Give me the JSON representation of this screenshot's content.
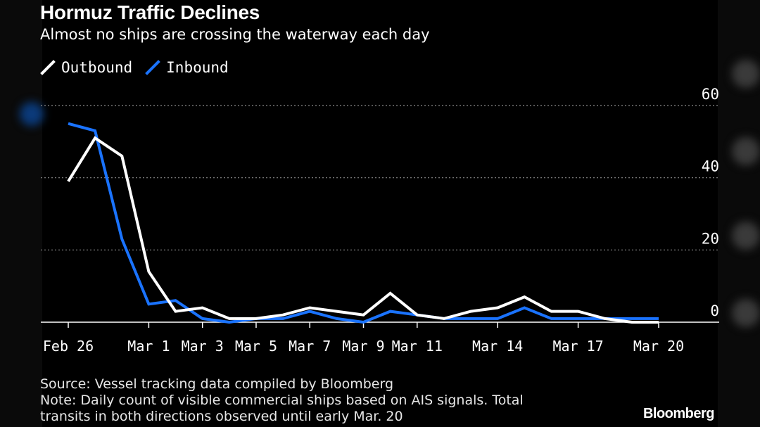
{
  "header": {
    "title": "Hormuz Traffic Declines",
    "subtitle": "Almost no ships are crossing the waterway each day"
  },
  "legend": [
    {
      "label": "Outbound",
      "color": "#ffffff"
    },
    {
      "label": "Inbound",
      "color": "#1a73ff"
    }
  ],
  "footer": {
    "source": "Source: Vessel tracking data compiled by Bloomberg",
    "note_line1": "Note: Daily count of visible commercial ships based on AIS signals. Total",
    "note_line2": "transits in both directions observed until early Mar. 20",
    "logo": "Bloomberg"
  },
  "chart_data": {
    "type": "line",
    "title": "Hormuz Traffic Declines",
    "subtitle": "Almost no ships are crossing the waterway each day",
    "x": [
      "Feb 26",
      "Feb 27",
      "Feb 28",
      "Mar 1",
      "Mar 2",
      "Mar 3",
      "Mar 4",
      "Mar 5",
      "Mar 6",
      "Mar 7",
      "Mar 8",
      "Mar 9",
      "Mar 10",
      "Mar 11",
      "Mar 12",
      "Mar 13",
      "Mar 14",
      "Mar 15",
      "Mar 16",
      "Mar 17",
      "Mar 18",
      "Mar 19",
      "Mar 20"
    ],
    "x_tick_labels": [
      "Feb 26",
      "Mar 1",
      "Mar 3",
      "Mar 5",
      "Mar 7",
      "Mar 9",
      "Mar 11",
      "Mar 14",
      "Mar 17",
      "Mar 20"
    ],
    "series": [
      {
        "name": "Outbound",
        "color": "#ffffff",
        "values": [
          39,
          51,
          46,
          14,
          3,
          4,
          1,
          1,
          2,
          4,
          3,
          2,
          8,
          2,
          1,
          3,
          4,
          7,
          3,
          3,
          1,
          0,
          0
        ]
      },
      {
        "name": "Inbound",
        "color": "#1a73ff",
        "values": [
          55,
          53,
          23,
          5,
          6,
          1,
          0,
          1,
          1,
          3,
          1,
          0,
          3,
          2,
          1,
          1,
          1,
          4,
          1,
          1,
          1,
          1,
          1
        ]
      }
    ],
    "ylim": [
      0,
      60
    ],
    "y_ticks": [
      0,
      20,
      40,
      60
    ],
    "y_axis_side": "right",
    "grid": true
  }
}
